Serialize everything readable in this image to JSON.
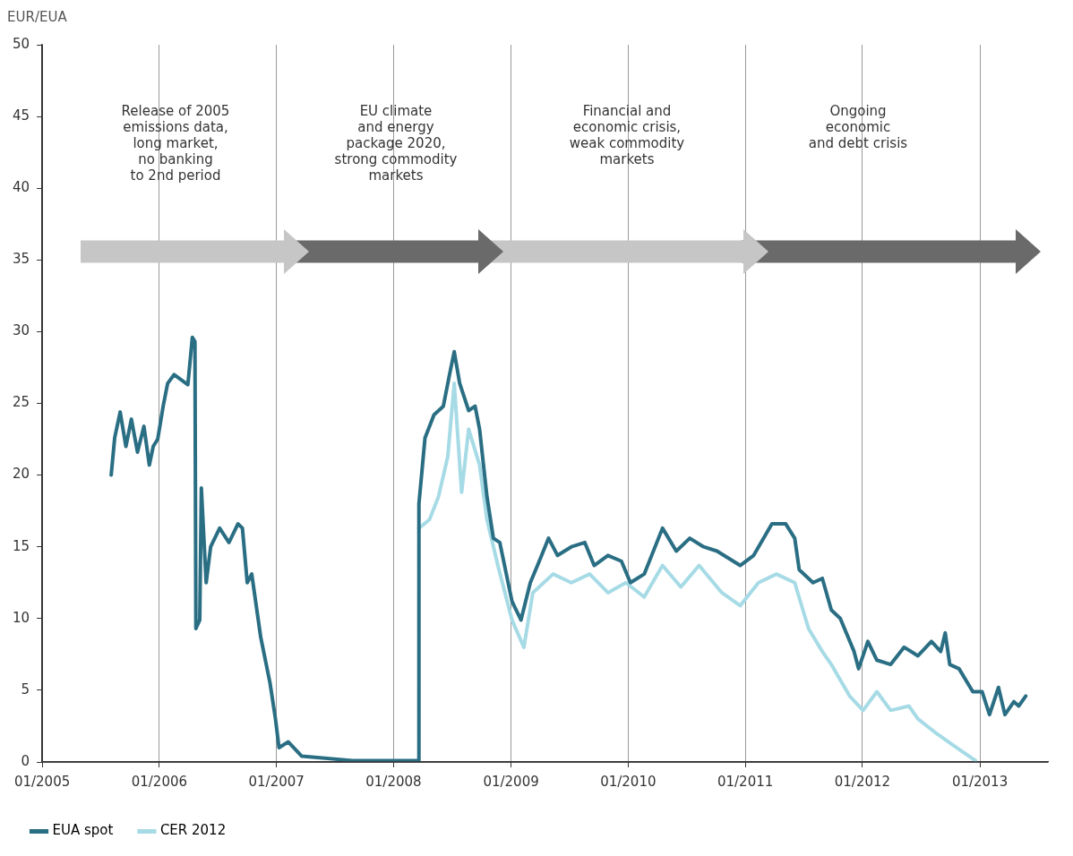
{
  "chart_data": {
    "type": "line",
    "ylabel": "EUR/EUA",
    "xlim": [
      "2005-01",
      "2013-08"
    ],
    "xticks": [
      {
        "value": "2005-01",
        "label": "01/2005"
      },
      {
        "value": "2006-01",
        "label": "01/2006"
      },
      {
        "value": "2007-01",
        "label": "01/2007"
      },
      {
        "value": "2008-01",
        "label": "01/2008"
      },
      {
        "value": "2009-01",
        "label": "01/2009"
      },
      {
        "value": "2010-01",
        "label": "01/2010"
      },
      {
        "value": "2011-01",
        "label": "01/2011"
      },
      {
        "value": "2012-01",
        "label": "01/2012"
      },
      {
        "value": "2013-01",
        "label": "01/2013"
      }
    ],
    "ylim": [
      0,
      50
    ],
    "yticks": [
      0,
      5,
      10,
      15,
      20,
      25,
      30,
      35,
      40,
      45,
      50
    ],
    "grid": "x",
    "legend": "bottom left",
    "marker": "none",
    "line_style": "solid",
    "annotations": [
      "Release of 2005\nemissions data,\nlong market,\nno banking\nto 2nd period",
      "EU climate\nand energy\npackage 2020,\nstrong commodity\nmarkets",
      "Financial and\neconomic crisis,\nweak commodity\nmarkets",
      "Ongoing\neconomic\nand debt crisis"
    ],
    "series": [
      {
        "name": "EUA spot",
        "color": "#2a6e84",
        "x": [
          "2005-08-04",
          "2005-08-15",
          "2005-09-01",
          "2005-09-19",
          "2005-10-06",
          "2005-10-25",
          "2005-11-14",
          "2005-12-01",
          "2005-12-13",
          "2005-12-27",
          "2006-01-13",
          "2006-01-27",
          "2006-02-16",
          "2006-03-31",
          "2006-04-14",
          "2006-04-22",
          "2006-04-25",
          "2006-05-07",
          "2006-05-12",
          "2006-05-27",
          "2006-06-10",
          "2006-07-08",
          "2006-08-06",
          "2006-09-03",
          "2006-09-17",
          "2006-10-02",
          "2006-10-16",
          "2006-11-13",
          "2006-12-12",
          "2006-12-29",
          "2007-01-09",
          "2007-02-07",
          "2007-03-21",
          "2007-08-25",
          "2008-03-18",
          "2008-03-20",
          "2008-04-08",
          "2008-05-06",
          "2008-06-04",
          "2008-06-26",
          "2008-07-08",
          "2008-07-25",
          "2008-08-22",
          "2008-09-11",
          "2008-09-25",
          "2008-10-18",
          "2008-11-07",
          "2008-11-27",
          "2009-01-04",
          "2009-02-01",
          "2009-03-02",
          "2009-03-30",
          "2009-04-28",
          "2009-05-26",
          "2009-07-08",
          "2009-08-19",
          "2009-09-17",
          "2009-10-30",
          "2009-12-11",
          "2010-01-08",
          "2010-02-20",
          "2010-04-18",
          "2010-05-31",
          "2010-07-12",
          "2010-08-24",
          "2010-10-05",
          "2010-12-16",
          "2011-01-27",
          "2011-03-25",
          "2011-05-07",
          "2011-06-04",
          "2011-06-18",
          "2011-07-31",
          "2011-08-29",
          "2011-09-26",
          "2011-10-24",
          "2011-12-06",
          "2011-12-20",
          "2012-01-18",
          "2012-02-15",
          "2012-03-29",
          "2012-05-10",
          "2012-06-22",
          "2012-08-03",
          "2012-09-01",
          "2012-09-15",
          "2012-09-29",
          "2012-10-28",
          "2012-12-10",
          "2013-01-08",
          "2013-01-31",
          "2013-02-28",
          "2013-03-20",
          "2013-04-17",
          "2013-05-02",
          "2013-05-24"
        ],
        "values": [
          20.0,
          22.6,
          24.4,
          22.0,
          23.9,
          21.6,
          23.4,
          20.7,
          22.0,
          22.5,
          24.8,
          26.4,
          27.0,
          26.3,
          29.6,
          29.3,
          9.3,
          9.9,
          19.1,
          12.5,
          15.0,
          16.3,
          15.3,
          16.6,
          16.3,
          12.5,
          13.1,
          8.7,
          5.5,
          3.0,
          1.0,
          1.4,
          0.4,
          0.1,
          0.1,
          18.0,
          22.6,
          24.2,
          24.8,
          27.3,
          28.6,
          26.4,
          24.5,
          24.8,
          23.2,
          18.5,
          15.6,
          15.3,
          11.2,
          9.9,
          12.5,
          14.0,
          15.6,
          14.4,
          15.0,
          15.3,
          13.7,
          14.4,
          14.0,
          12.5,
          13.1,
          16.3,
          14.7,
          15.6,
          15.0,
          14.7,
          13.7,
          14.4,
          16.6,
          16.6,
          15.6,
          13.4,
          12.5,
          12.8,
          10.6,
          10.0,
          7.7,
          6.5,
          8.4,
          7.1,
          6.8,
          8.0,
          7.4,
          8.4,
          7.7,
          9.0,
          6.8,
          6.5,
          4.9,
          4.9,
          3.3,
          5.2,
          3.3,
          4.2,
          3.9,
          4.6
        ]
      },
      {
        "name": "CER 2012",
        "color": "#a6dbe6",
        "x": [
          "2008-03-20",
          "2008-04-22",
          "2008-05-20",
          "2008-06-18",
          "2008-07-08",
          "2008-07-31",
          "2008-08-22",
          "2008-09-25",
          "2008-10-18",
          "2008-11-21",
          "2009-01-04",
          "2009-02-10",
          "2009-03-10",
          "2009-05-12",
          "2009-07-08",
          "2009-09-03",
          "2009-10-30",
          "2009-12-25",
          "2010-02-20",
          "2010-04-18",
          "2010-06-14",
          "2010-08-10",
          "2010-10-20",
          "2010-12-16",
          "2011-02-11",
          "2011-04-08",
          "2011-06-04",
          "2011-07-17",
          "2011-08-29",
          "2011-09-26",
          "2011-11-22",
          "2012-01-03",
          "2012-02-15",
          "2012-03-29",
          "2012-05-25",
          "2012-06-22",
          "2012-08-18",
          "2012-10-14",
          "2012-12-18"
        ],
        "values": [
          16.3,
          16.9,
          18.5,
          21.3,
          26.4,
          18.8,
          23.2,
          20.7,
          16.9,
          13.7,
          9.9,
          8.0,
          11.8,
          13.1,
          12.5,
          13.1,
          11.8,
          12.5,
          11.5,
          13.7,
          12.2,
          13.7,
          11.8,
          10.9,
          12.5,
          13.1,
          12.5,
          9.3,
          7.7,
          6.8,
          4.6,
          3.6,
          4.9,
          3.6,
          3.9,
          3.0,
          2.0,
          1.1,
          0.1
        ]
      }
    ]
  }
}
